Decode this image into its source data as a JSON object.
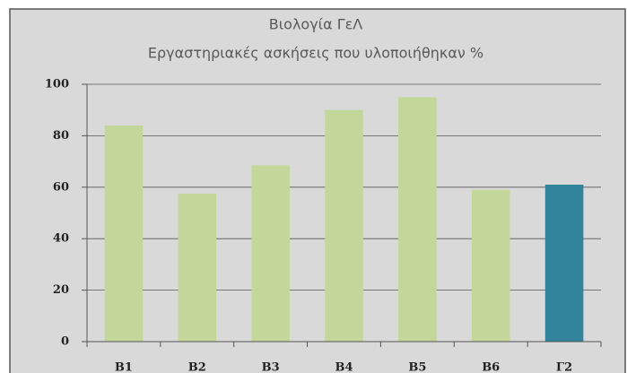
{
  "chart_data": {
    "type": "bar",
    "title": [
      "Βιολογία ΓεΛ",
      "Εργαστηριακές ασκήσεις που υλοποιήθηκαν %"
    ],
    "categories": [
      "B1",
      "B2",
      "B3",
      "B4",
      "B5",
      "B6",
      "Γ2"
    ],
    "values": [
      84,
      57.5,
      68.5,
      90,
      95,
      59,
      61
    ],
    "colors": [
      "#c4d79b",
      "#c4d79b",
      "#c4d79b",
      "#c4d79b",
      "#c4d79b",
      "#c4d79b",
      "#31849b"
    ],
    "ylim": [
      0,
      100
    ],
    "yticks": [
      0,
      20,
      40,
      60,
      80,
      100
    ],
    "grid": true
  }
}
